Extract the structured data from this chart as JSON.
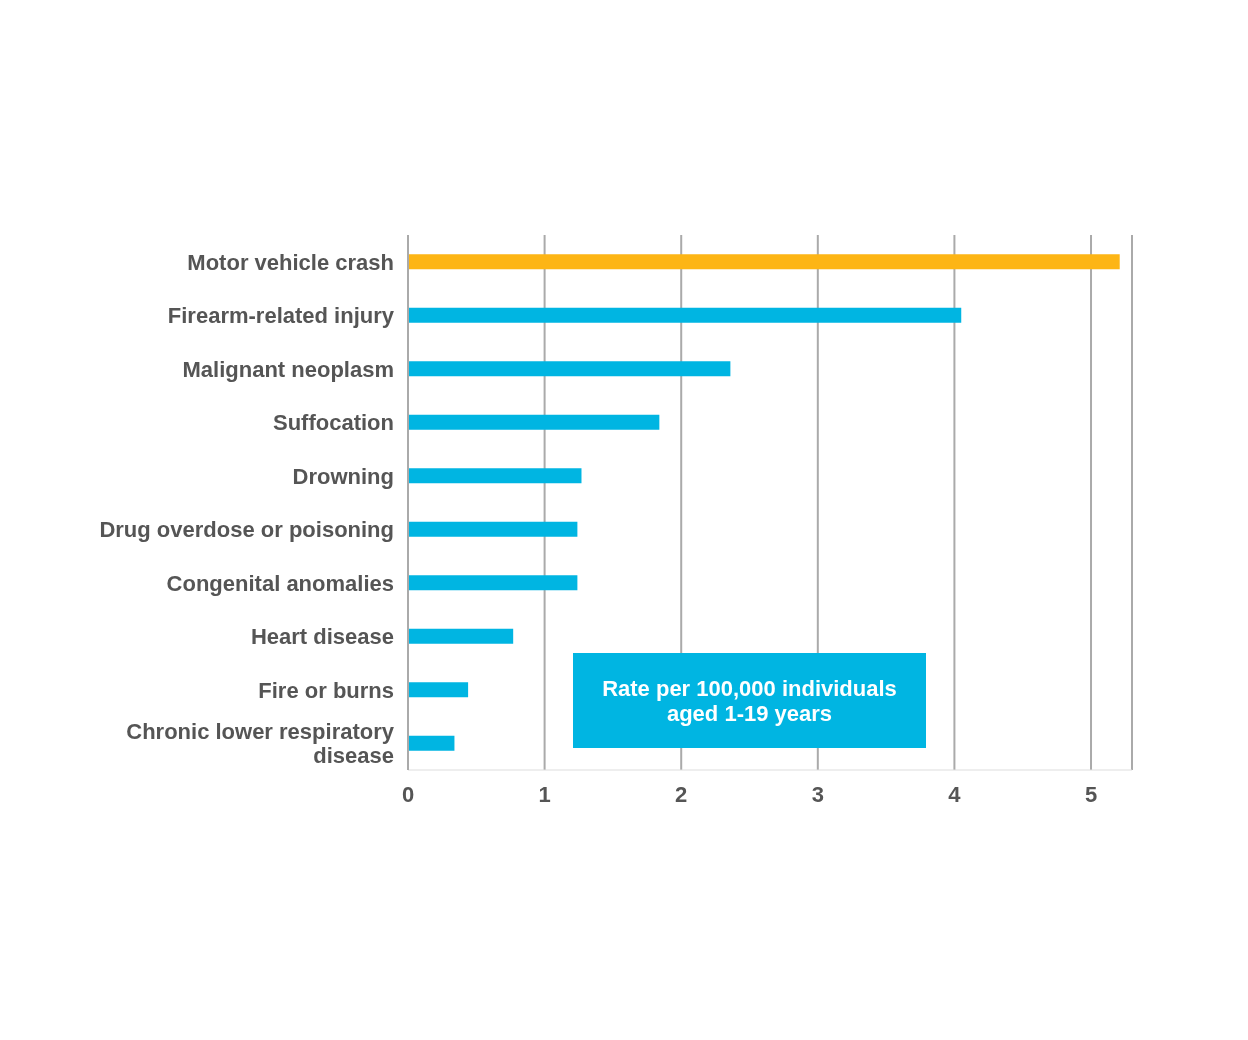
{
  "chart_data": {
    "type": "bar",
    "orientation": "horizontal",
    "categories": [
      "Motor vehicle crash",
      "Firearm-related injury",
      "Malignant neoplasm",
      "Suffocation",
      "Drowning",
      "Drug overdose or poisoning",
      "Congenital anomalies",
      "Heart disease",
      "Fire or burns",
      "Chronic lower respiratory disease"
    ],
    "values": [
      5.21,
      4.05,
      2.36,
      1.84,
      1.27,
      1.24,
      1.24,
      0.77,
      0.44,
      0.34
    ],
    "colors": [
      "#fdb515",
      "#00b5e2",
      "#00b5e2",
      "#00b5e2",
      "#00b5e2",
      "#00b5e2",
      "#00b5e2",
      "#00b5e2",
      "#00b5e2",
      "#00b5e2"
    ],
    "xlim": [
      0,
      5.3
    ],
    "xticks": [
      0,
      1,
      2,
      3,
      4,
      5
    ],
    "grid": "x",
    "annotations": [
      "Rate per 100,000 individuals aged 1-19 years"
    ]
  }
}
